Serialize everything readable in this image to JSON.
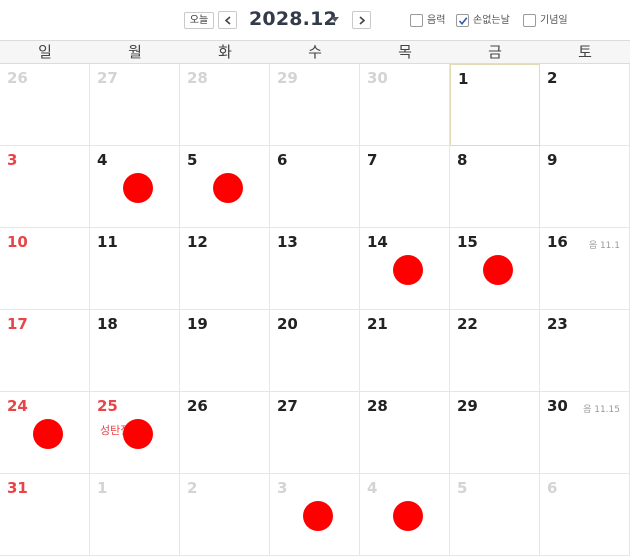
{
  "toolbar": {
    "today_label": "오늘",
    "month_title": "2028.12",
    "options": [
      {
        "label": "음력",
        "checked": false
      },
      {
        "label": "손없는날",
        "checked": true
      },
      {
        "label": "기념일",
        "checked": false
      }
    ]
  },
  "weekdays": [
    "일",
    "월",
    "화",
    "수",
    "목",
    "금",
    "토"
  ],
  "weeks": [
    [
      {
        "day": "26",
        "type": "other"
      },
      {
        "day": "27",
        "type": "other"
      },
      {
        "day": "28",
        "type": "other"
      },
      {
        "day": "29",
        "type": "other"
      },
      {
        "day": "30",
        "type": "other"
      },
      {
        "day": "1",
        "type": "today"
      },
      {
        "day": "2"
      }
    ],
    [
      {
        "day": "3",
        "type": "sun"
      },
      {
        "day": "4",
        "dot": true
      },
      {
        "day": "5",
        "dot": true
      },
      {
        "day": "6"
      },
      {
        "day": "7"
      },
      {
        "day": "8"
      },
      {
        "day": "9"
      }
    ],
    [
      {
        "day": "10",
        "type": "sun"
      },
      {
        "day": "11"
      },
      {
        "day": "12"
      },
      {
        "day": "13"
      },
      {
        "day": "14",
        "dot": true
      },
      {
        "day": "15",
        "dot": true
      },
      {
        "day": "16",
        "lunar": "음 11.1"
      }
    ],
    [
      {
        "day": "17",
        "type": "sun"
      },
      {
        "day": "18"
      },
      {
        "day": "19"
      },
      {
        "day": "20"
      },
      {
        "day": "21"
      },
      {
        "day": "22"
      },
      {
        "day": "23"
      }
    ],
    [
      {
        "day": "24",
        "type": "sun",
        "dot": true
      },
      {
        "day": "25",
        "type": "sun",
        "holiday": "성탄절",
        "dot": true
      },
      {
        "day": "26"
      },
      {
        "day": "27"
      },
      {
        "day": "28"
      },
      {
        "day": "29"
      },
      {
        "day": "30",
        "lunar": "음 11.15"
      }
    ],
    [
      {
        "day": "31",
        "type": "sun"
      },
      {
        "day": "1",
        "type": "other"
      },
      {
        "day": "2",
        "type": "other"
      },
      {
        "day": "3",
        "type": "other",
        "dot": true
      },
      {
        "day": "4",
        "type": "other",
        "dot": true
      },
      {
        "day": "5",
        "type": "other"
      },
      {
        "day": "6",
        "type": "other"
      }
    ]
  ],
  "colors": {
    "sunday": "#e8454a",
    "marker": "#ff0000",
    "today_border": "#e3d9b5"
  }
}
